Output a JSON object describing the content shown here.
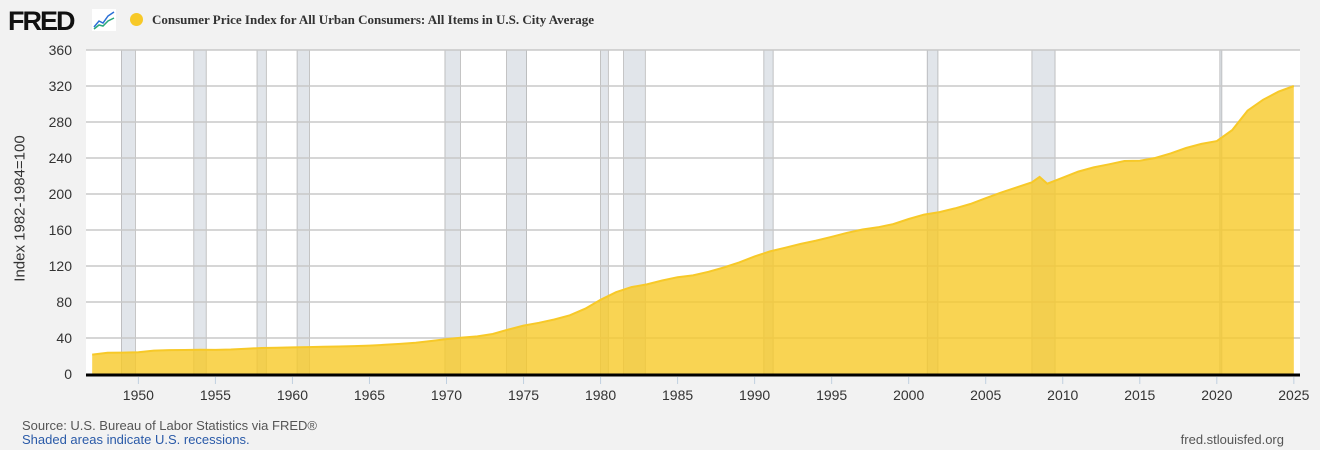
{
  "header": {
    "logo": "FRED",
    "logo_icon": "line-chart-icon"
  },
  "source": "Source: U.S. Bureau of Labor Statistics via FRED®",
  "recession_note": "Shaded areas indicate U.S. recessions.",
  "site": "fred.stlouisfed.org",
  "chart_data": {
    "type": "area",
    "title": "Consumer Price Index for All Urban Consumers: All Items in U.S. City Average",
    "ylabel": "Index 1982-1984=100",
    "xlabel": "",
    "ylim": [
      0,
      360
    ],
    "xlim": [
      1946.6,
      2025.4
    ],
    "yticks": [
      0,
      40,
      80,
      120,
      160,
      200,
      240,
      280,
      320,
      360
    ],
    "xticks": [
      1950,
      1955,
      1960,
      1965,
      1970,
      1975,
      1980,
      1985,
      1990,
      1995,
      2000,
      2005,
      2010,
      2015,
      2020,
      2025
    ],
    "grid": true,
    "color": "#f7c928",
    "recessions": [
      [
        1948.9,
        1949.8
      ],
      [
        1953.6,
        1954.4
      ],
      [
        1957.7,
        1958.3
      ],
      [
        1960.3,
        1961.1
      ],
      [
        1969.9,
        1970.9
      ],
      [
        1973.9,
        1975.2
      ],
      [
        1980.0,
        1980.5
      ],
      [
        1981.5,
        1982.9
      ],
      [
        1990.6,
        1991.2
      ],
      [
        2001.2,
        2001.9
      ],
      [
        2008.0,
        2009.5
      ],
      [
        2020.2,
        2020.3
      ]
    ],
    "series": [
      {
        "name": "CPIAUCSL",
        "x": [
          1947,
          1948,
          1949,
          1950,
          1951,
          1952,
          1953,
          1954,
          1955,
          1956,
          1957,
          1958,
          1959,
          1960,
          1961,
          1962,
          1963,
          1964,
          1965,
          1966,
          1967,
          1968,
          1969,
          1970,
          1971,
          1972,
          1973,
          1974,
          1975,
          1976,
          1977,
          1978,
          1979,
          1980,
          1981,
          1982,
          1983,
          1984,
          1985,
          1986,
          1987,
          1988,
          1989,
          1990,
          1991,
          1992,
          1993,
          1994,
          1995,
          1996,
          1997,
          1998,
          1999,
          2000,
          2001,
          2002,
          2003,
          2004,
          2005,
          2006,
          2007,
          2008,
          2008.5,
          2009,
          2010,
          2011,
          2012,
          2013,
          2014,
          2015,
          2016,
          2017,
          2018,
          2019,
          2020,
          2021,
          2022,
          2023,
          2024,
          2025
        ],
        "values": [
          21.5,
          23.7,
          23.8,
          24.1,
          26.0,
          26.5,
          26.7,
          26.9,
          26.8,
          27.2,
          28.1,
          28.9,
          29.1,
          29.6,
          29.9,
          30.2,
          30.6,
          31.0,
          31.5,
          32.4,
          33.4,
          34.8,
          36.7,
          38.8,
          40.5,
          41.8,
          44.4,
          49.3,
          53.8,
          56.9,
          60.6,
          65.2,
          72.6,
          82.4,
          90.9,
          96.5,
          99.6,
          103.9,
          107.6,
          109.6,
          113.6,
          118.3,
          124.0,
          130.7,
          136.2,
          140.3,
          144.5,
          148.2,
          152.4,
          156.9,
          160.5,
          163.0,
          166.6,
          172.2,
          177.1,
          179.9,
          184.0,
          188.9,
          195.3,
          201.6,
          207.3,
          213.0,
          219.0,
          211.5,
          218.1,
          224.9,
          229.6,
          233.0,
          236.7,
          237.0,
          240.0,
          245.1,
          251.1,
          255.7,
          258.8,
          271.0,
          292.7,
          304.7,
          313.7,
          320.0
        ]
      }
    ]
  }
}
